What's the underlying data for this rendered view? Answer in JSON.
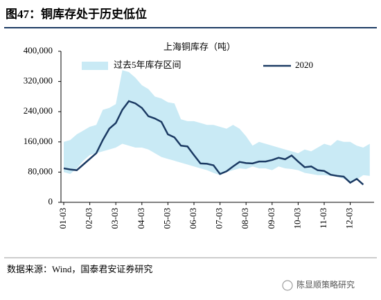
{
  "title": "图47：铜库存处于历史低位",
  "source": "数据来源：Wind，国泰君安证券研究",
  "watermark": "陈显顺策略研究",
  "chart_data": {
    "type": "line",
    "subtitle": "上海铜库存（吨）",
    "categories": [
      "01-03",
      null,
      null,
      null,
      "02-03",
      null,
      null,
      null,
      "03-03",
      null,
      null,
      null,
      "04-03",
      null,
      null,
      null,
      "05-03",
      null,
      null,
      null,
      "06-03",
      null,
      null,
      null,
      "07-03",
      null,
      null,
      null,
      "08-03",
      null,
      null,
      null,
      "09-03",
      null,
      null,
      null,
      "10-03",
      null,
      null,
      null,
      "11-03",
      null,
      null,
      null,
      "12-03",
      null,
      null,
      null
    ],
    "series": [
      {
        "name": "过去5年库存区间",
        "color": "#c9eaf5",
        "kind": "range",
        "low": [
          80000,
          75000,
          90000,
          110000,
          125000,
          130000,
          135000,
          140000,
          145000,
          155000,
          150000,
          145000,
          145000,
          140000,
          130000,
          120000,
          115000,
          110000,
          105000,
          100000,
          95000,
          90000,
          85000,
          78000,
          72000,
          80000,
          85000,
          90000,
          88000,
          95000,
          90000,
          90000,
          85000,
          95000,
          90000,
          88000,
          85000,
          78000,
          75000,
          72000,
          72000,
          70000,
          68000,
          62000,
          55000,
          60000,
          72000,
          70000
        ],
        "high": [
          160000,
          165000,
          180000,
          190000,
          200000,
          205000,
          245000,
          250000,
          260000,
          350000,
          345000,
          330000,
          310000,
          300000,
          280000,
          275000,
          265000,
          262000,
          220000,
          215000,
          215000,
          210000,
          205000,
          205000,
          200000,
          195000,
          205000,
          195000,
          175000,
          150000,
          160000,
          155000,
          150000,
          145000,
          140000,
          135000,
          130000,
          140000,
          135000,
          145000,
          155000,
          150000,
          165000,
          160000,
          160000,
          150000,
          145000,
          155000
        ]
      },
      {
        "name": "2020",
        "color": "#1b3a63",
        "values": [
          90000,
          87000,
          85000,
          100000,
          115000,
          130000,
          165000,
          195000,
          210000,
          245000,
          268000,
          262000,
          250000,
          228000,
          222000,
          213000,
          180000,
          172000,
          150000,
          148000,
          125000,
          103000,
          102000,
          98000,
          75000,
          82000,
          95000,
          107000,
          104000,
          103000,
          108000,
          108000,
          112000,
          118000,
          114000,
          124000,
          108000,
          93000,
          95000,
          85000,
          83000,
          73000,
          70000,
          68000,
          52000,
          62000,
          47000,
          null
        ]
      }
    ],
    "ylim": [
      0,
      400000
    ],
    "yticks": [
      0,
      {
        "value": 80000,
        "label": "80,000"
      },
      {
        "value": 160000,
        "label": "160,000"
      },
      {
        "value": 240000,
        "label": "240,000"
      },
      {
        "value": 320000,
        "label": "320,000"
      },
      {
        "value": 400000,
        "label": "400,000"
      }
    ],
    "grid": false
  }
}
